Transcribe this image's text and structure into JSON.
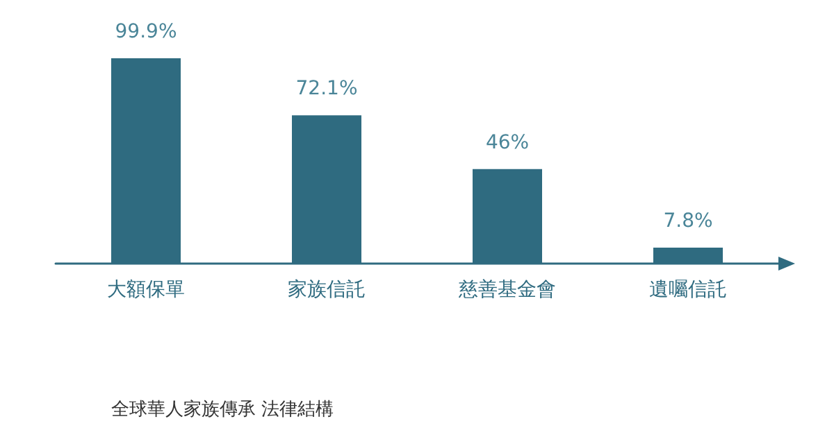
{
  "chart_data": {
    "type": "bar",
    "title": "全球華人家族傳承 法律結構",
    "categories": [
      "大額保單",
      "家族信託",
      "慈善基金會",
      "遺囑信託"
    ],
    "values": [
      99.9,
      72.1,
      46,
      7.8
    ],
    "value_labels": [
      "99.9%",
      "72.1%",
      "46%",
      "7.8%"
    ],
    "color": "#2f6b80",
    "grid": false
  }
}
